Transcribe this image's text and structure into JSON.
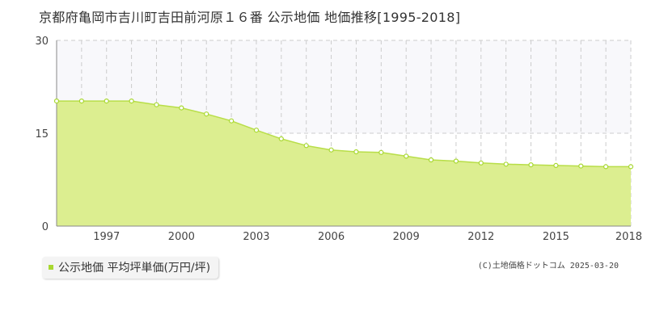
{
  "title": "京都府亀岡市吉川町吉田前河原１６番 公示地価 地価推移[1995-2018]",
  "legend": {
    "label": "公示地価 平均坪単価(万円/坪)"
  },
  "copyright": "(C)土地価格ドットコム 2025-03-20",
  "colors": {
    "fill": "#dcee90",
    "line": "#b8de48",
    "marker_stroke": "#a8d830",
    "accent": "#a8d830"
  },
  "chart_data": {
    "type": "area",
    "title": "京都府亀岡市吉川町吉田前河原１６番 公示地価 地価推移[1995-2018]",
    "xlabel": "",
    "ylabel": "",
    "x": [
      1995,
      1996,
      1997,
      1998,
      1999,
      2000,
      2001,
      2002,
      2003,
      2004,
      2005,
      2006,
      2007,
      2008,
      2009,
      2010,
      2011,
      2012,
      2013,
      2014,
      2015,
      2016,
      2017,
      2018
    ],
    "series": [
      {
        "name": "公示地価 平均坪単価(万円/坪)",
        "values": [
          20.2,
          20.2,
          20.2,
          20.2,
          19.6,
          19.1,
          18.1,
          17.0,
          15.5,
          14.1,
          13.0,
          12.3,
          12.0,
          11.9,
          11.3,
          10.7,
          10.5,
          10.2,
          10.0,
          9.9,
          9.8,
          9.7,
          9.6,
          9.6
        ]
      }
    ],
    "xlim": [
      1995,
      2018
    ],
    "ylim": [
      0,
      30
    ],
    "yticks": [
      0,
      15,
      30
    ],
    "xticks": [
      1997,
      2000,
      2003,
      2006,
      2009,
      2012,
      2015,
      2018
    ],
    "grid": true,
    "legend_position": "bottom-left"
  }
}
